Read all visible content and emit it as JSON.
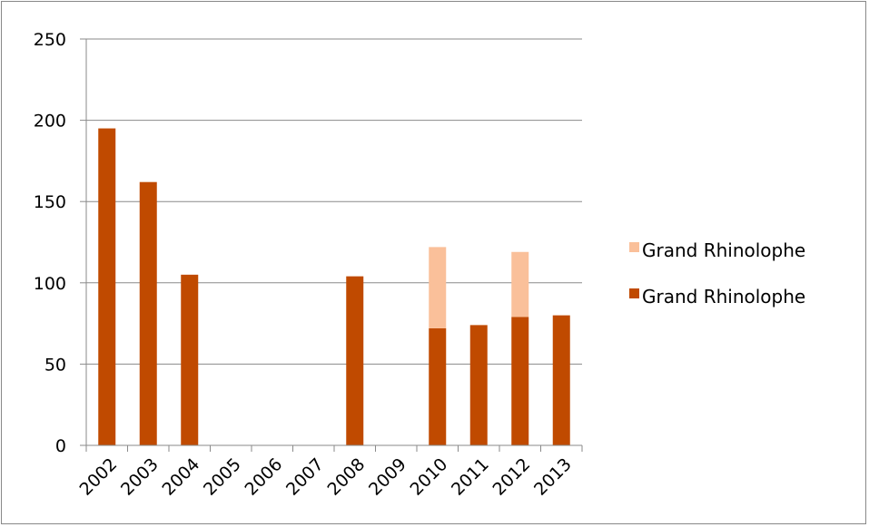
{
  "chart_data": {
    "type": "bar",
    "stacked": true,
    "categories": [
      "2002",
      "2003",
      "2004",
      "2005",
      "2006",
      "2007",
      "2008",
      "2009",
      "2010",
      "2011",
      "2012",
      "2013"
    ],
    "series": [
      {
        "name": "Grand Rhinolophe",
        "color": "#C04A00",
        "values": [
          195,
          162,
          105,
          0,
          0,
          0,
          104,
          0,
          72,
          74,
          79,
          80
        ]
      },
      {
        "name": "Grand Rhinolophe",
        "color": "#FAC09A",
        "values": [
          0,
          0,
          0,
          0,
          0,
          0,
          0,
          0,
          50,
          0,
          40,
          0
        ]
      }
    ],
    "y_ticks": [
      "0",
      "50",
      "100",
      "150",
      "200",
      "250"
    ],
    "ylim": [
      0,
      250
    ],
    "grid": true,
    "legend_position": "right",
    "xlabel": "",
    "ylabel": "",
    "title": ""
  }
}
